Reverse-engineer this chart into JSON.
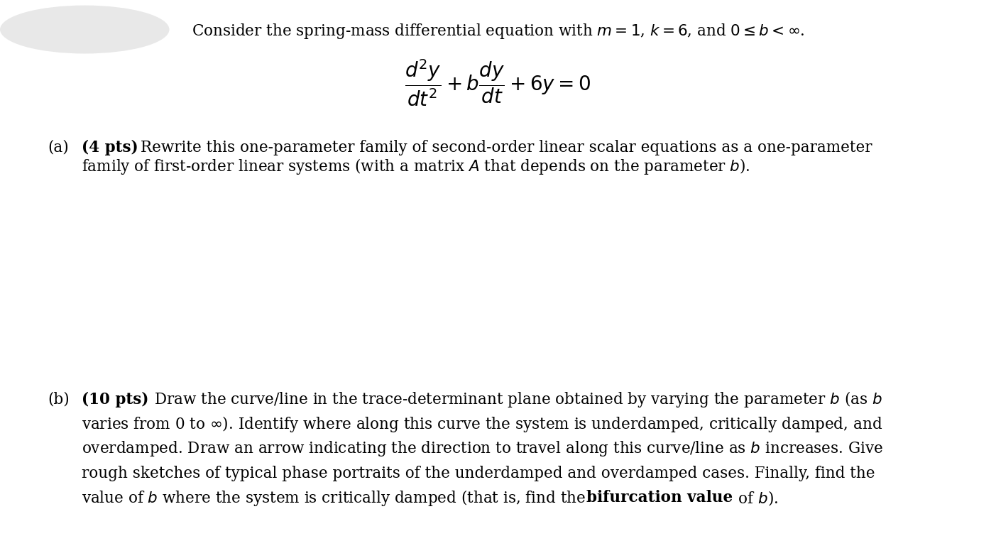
{
  "bg_color": "#ffffff",
  "title_text": "Consider the spring-mass differential equation with $m = 1$, $k = 6$, and $0 \\leq b < \\infty$.",
  "equation": "$\\dfrac{d^2y}{dt^2} + b\\dfrac{dy}{dt} + 6y = 0$",
  "font_size_main": 15.5,
  "font_size_eq": 20,
  "gray_box_color": "#e8e8e8",
  "part_a_label": "(a)",
  "part_a_pts": "(4 pts)",
  "part_a_line1": "Rewrite this one-parameter family of second-order linear scalar equations as a one-parameter",
  "part_a_line2": "family of first-order linear systems (with a matrix $A$ that depends on the parameter $b$).",
  "part_b_label": "(b)",
  "part_b_pts": "(10 pts)",
  "part_b_line1_pre": "Draw the curve/line in the trace-determinant plane obtained by varying the parameter $b$ (as $b$",
  "part_b_line2": "varies from 0 to $\\infty$). Identify where along this curve the system is underdamped, critically damped, and",
  "part_b_line3": "overdamped. Draw an arrow indicating the direction to travel along this curve/line as $b$ increases. Give",
  "part_b_line4": "rough sketches of typical phase portraits of the underdamped and overdamped cases. Finally, find the",
  "part_b_line5_pre": "value of $b$ where the system is critically damped (that is, find the ",
  "part_b_line5_bold": "bifurcation value",
  "part_b_line5_post": " of $b$)."
}
